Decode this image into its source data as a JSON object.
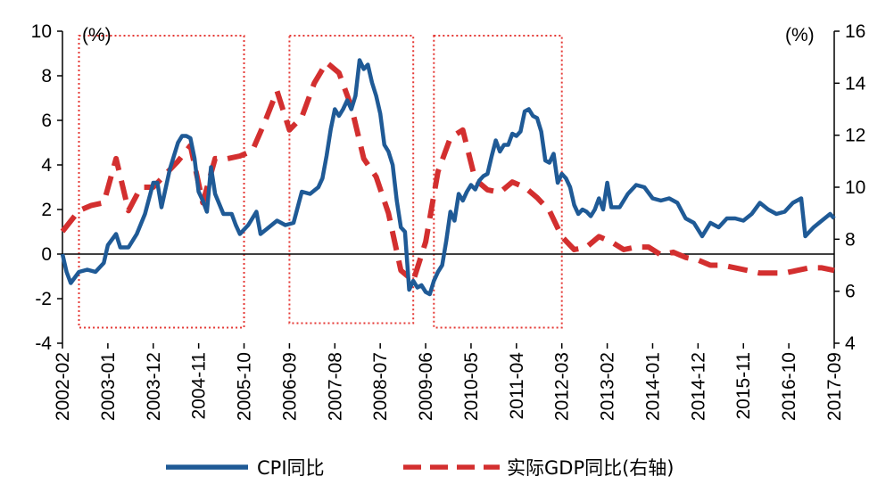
{
  "chart_data": {
    "type": "line",
    "x": [
      "2002-02",
      "2003-01",
      "2003-12",
      "2004-11",
      "2005-10",
      "2006-09",
      "2007-08",
      "2008-07",
      "2009-06",
      "2010-05",
      "2011-04",
      "2012-03",
      "2013-02",
      "2014-01",
      "2014-12",
      "2015-11",
      "2016-10",
      "2017-09"
    ],
    "left_axis": {
      "unit": "(%)",
      "ylim": [
        -4,
        10
      ],
      "ticks": [
        "10",
        "8",
        "6",
        "4",
        "2",
        "0",
        "-2",
        "-4"
      ]
    },
    "right_axis": {
      "unit": "(%)",
      "ylim": [
        4,
        16
      ],
      "ticks": [
        "16",
        "14",
        "12",
        "10",
        "8",
        "6",
        "4"
      ]
    },
    "series": [
      {
        "name": "CPI同比",
        "axis": "left",
        "color": "#1f5a96",
        "style": "solid",
        "points": [
          [
            "2002-02",
            0.0
          ],
          [
            "2002-03",
            -0.8
          ],
          [
            "2002-04",
            -1.3
          ],
          [
            "2002-06",
            -0.8
          ],
          [
            "2002-08",
            -0.7
          ],
          [
            "2002-10",
            -0.8
          ],
          [
            "2002-12",
            -0.4
          ],
          [
            "2003-01",
            0.4
          ],
          [
            "2003-03",
            0.9
          ],
          [
            "2003-04",
            0.3
          ],
          [
            "2003-06",
            0.3
          ],
          [
            "2003-08",
            0.9
          ],
          [
            "2003-10",
            1.8
          ],
          [
            "2003-12",
            3.2
          ],
          [
            "2004-01",
            3.2
          ],
          [
            "2004-02",
            2.1
          ],
          [
            "2004-04",
            3.8
          ],
          [
            "2004-06",
            5.0
          ],
          [
            "2004-07",
            5.3
          ],
          [
            "2004-08",
            5.3
          ],
          [
            "2004-09",
            5.2
          ],
          [
            "2004-10",
            4.3
          ],
          [
            "2004-11",
            2.8
          ],
          [
            "2004-12",
            2.4
          ],
          [
            "2005-01",
            1.9
          ],
          [
            "2005-02",
            3.9
          ],
          [
            "2005-03",
            2.7
          ],
          [
            "2005-05",
            1.8
          ],
          [
            "2005-07",
            1.8
          ],
          [
            "2005-08",
            1.3
          ],
          [
            "2005-09",
            0.9
          ],
          [
            "2005-11",
            1.3
          ],
          [
            "2006-01",
            1.9
          ],
          [
            "2006-02",
            0.9
          ],
          [
            "2006-04",
            1.2
          ],
          [
            "2006-06",
            1.5
          ],
          [
            "2006-08",
            1.3
          ],
          [
            "2006-10",
            1.4
          ],
          [
            "2006-12",
            2.8
          ],
          [
            "2007-02",
            2.7
          ],
          [
            "2007-04",
            3.0
          ],
          [
            "2007-05",
            3.4
          ],
          [
            "2007-06",
            4.4
          ],
          [
            "2007-07",
            5.6
          ],
          [
            "2007-08",
            6.5
          ],
          [
            "2007-09",
            6.2
          ],
          [
            "2007-10",
            6.5
          ],
          [
            "2007-11",
            6.9
          ],
          [
            "2007-12",
            6.5
          ],
          [
            "2008-01",
            7.1
          ],
          [
            "2008-02",
            8.7
          ],
          [
            "2008-03",
            8.3
          ],
          [
            "2008-04",
            8.5
          ],
          [
            "2008-05",
            7.7
          ],
          [
            "2008-06",
            7.1
          ],
          [
            "2008-07",
            6.3
          ],
          [
            "2008-08",
            4.9
          ],
          [
            "2008-09",
            4.6
          ],
          [
            "2008-10",
            4.0
          ],
          [
            "2008-11",
            2.4
          ],
          [
            "2008-12",
            1.2
          ],
          [
            "2009-01",
            1.0
          ],
          [
            "2009-02",
            -1.6
          ],
          [
            "2009-03",
            -1.2
          ],
          [
            "2009-04",
            -1.5
          ],
          [
            "2009-05",
            -1.4
          ],
          [
            "2009-06",
            -1.7
          ],
          [
            "2009-07",
            -1.8
          ],
          [
            "2009-08",
            -1.2
          ],
          [
            "2009-09",
            -0.8
          ],
          [
            "2009-10",
            -0.5
          ],
          [
            "2009-11",
            0.6
          ],
          [
            "2009-12",
            1.9
          ],
          [
            "2010-01",
            1.5
          ],
          [
            "2010-02",
            2.7
          ],
          [
            "2010-03",
            2.4
          ],
          [
            "2010-04",
            2.8
          ],
          [
            "2010-05",
            3.1
          ],
          [
            "2010-06",
            2.9
          ],
          [
            "2010-07",
            3.3
          ],
          [
            "2010-08",
            3.5
          ],
          [
            "2010-09",
            3.6
          ],
          [
            "2010-10",
            4.4
          ],
          [
            "2010-11",
            5.1
          ],
          [
            "2010-12",
            4.6
          ],
          [
            "2011-01",
            4.9
          ],
          [
            "2011-02",
            4.9
          ],
          [
            "2011-03",
            5.4
          ],
          [
            "2011-04",
            5.3
          ],
          [
            "2011-05",
            5.5
          ],
          [
            "2011-06",
            6.4
          ],
          [
            "2011-07",
            6.5
          ],
          [
            "2011-08",
            6.2
          ],
          [
            "2011-09",
            6.1
          ],
          [
            "2011-10",
            5.5
          ],
          [
            "2011-11",
            4.2
          ],
          [
            "2011-12",
            4.1
          ],
          [
            "2012-01",
            4.5
          ],
          [
            "2012-02",
            3.2
          ],
          [
            "2012-03",
            3.6
          ],
          [
            "2012-04",
            3.4
          ],
          [
            "2012-05",
            3.0
          ],
          [
            "2012-06",
            2.2
          ],
          [
            "2012-07",
            1.8
          ],
          [
            "2012-08",
            2.0
          ],
          [
            "2012-09",
            1.9
          ],
          [
            "2012-10",
            1.7
          ],
          [
            "2012-11",
            2.0
          ],
          [
            "2012-12",
            2.5
          ],
          [
            "2013-01",
            2.0
          ],
          [
            "2013-02",
            3.2
          ],
          [
            "2013-03",
            2.1
          ],
          [
            "2013-05",
            2.1
          ],
          [
            "2013-07",
            2.7
          ],
          [
            "2013-09",
            3.1
          ],
          [
            "2013-11",
            3.0
          ],
          [
            "2014-01",
            2.5
          ],
          [
            "2014-03",
            2.4
          ],
          [
            "2014-05",
            2.5
          ],
          [
            "2014-07",
            2.3
          ],
          [
            "2014-09",
            1.6
          ],
          [
            "2014-11",
            1.4
          ],
          [
            "2015-01",
            0.8
          ],
          [
            "2015-03",
            1.4
          ],
          [
            "2015-05",
            1.2
          ],
          [
            "2015-07",
            1.6
          ],
          [
            "2015-09",
            1.6
          ],
          [
            "2015-11",
            1.5
          ],
          [
            "2016-01",
            1.8
          ],
          [
            "2016-03",
            2.3
          ],
          [
            "2016-05",
            2.0
          ],
          [
            "2016-07",
            1.8
          ],
          [
            "2016-09",
            1.9
          ],
          [
            "2016-11",
            2.3
          ],
          [
            "2017-01",
            2.5
          ],
          [
            "2017-02",
            0.8
          ],
          [
            "2017-04",
            1.2
          ],
          [
            "2017-06",
            1.5
          ],
          [
            "2017-08",
            1.8
          ],
          [
            "2017-09",
            1.6
          ]
        ]
      },
      {
        "name": "实际GDP同比(右轴)",
        "axis": "right",
        "color": "#d32f2f",
        "style": "dashed",
        "points": [
          [
            "2002-02",
            8.3
          ],
          [
            "2002-06",
            9.1
          ],
          [
            "2002-09",
            9.3
          ],
          [
            "2002-12",
            9.4
          ],
          [
            "2003-03",
            11.1
          ],
          [
            "2003-06",
            9.1
          ],
          [
            "2003-09",
            10.0
          ],
          [
            "2003-12",
            10.0
          ],
          [
            "2004-03",
            10.5
          ],
          [
            "2004-06",
            11.0
          ],
          [
            "2004-09",
            11.6
          ],
          [
            "2004-12",
            9.4
          ],
          [
            "2005-03",
            11.1
          ],
          [
            "2005-06",
            11.1
          ],
          [
            "2005-09",
            11.2
          ],
          [
            "2005-12",
            11.4
          ],
          [
            "2006-03",
            12.5
          ],
          [
            "2006-06",
            13.7
          ],
          [
            "2006-09",
            12.2
          ],
          [
            "2006-12",
            12.7
          ],
          [
            "2007-03",
            14.0
          ],
          [
            "2007-06",
            14.8
          ],
          [
            "2007-09",
            14.4
          ],
          [
            "2007-12",
            13.1
          ],
          [
            "2008-03",
            11.1
          ],
          [
            "2008-06",
            10.4
          ],
          [
            "2008-09",
            9.0
          ],
          [
            "2008-12",
            6.8
          ],
          [
            "2009-03",
            6.4
          ],
          [
            "2009-06",
            7.9
          ],
          [
            "2009-09",
            10.6
          ],
          [
            "2009-12",
            11.9
          ],
          [
            "2010-03",
            12.2
          ],
          [
            "2010-06",
            10.3
          ],
          [
            "2010-09",
            9.9
          ],
          [
            "2010-12",
            9.8
          ],
          [
            "2011-03",
            10.2
          ],
          [
            "2011-06",
            10.0
          ],
          [
            "2011-09",
            9.6
          ],
          [
            "2011-12",
            9.1
          ],
          [
            "2012-03",
            8.1
          ],
          [
            "2012-06",
            7.6
          ],
          [
            "2012-09",
            7.7
          ],
          [
            "2012-12",
            8.1
          ],
          [
            "2013-03",
            7.9
          ],
          [
            "2013-06",
            7.6
          ],
          [
            "2013-09",
            7.7
          ],
          [
            "2013-12",
            7.7
          ],
          [
            "2014-03",
            7.4
          ],
          [
            "2014-06",
            7.5
          ],
          [
            "2014-09",
            7.3
          ],
          [
            "2014-12",
            7.2
          ],
          [
            "2015-03",
            7.0
          ],
          [
            "2015-06",
            7.0
          ],
          [
            "2015-09",
            6.9
          ],
          [
            "2015-12",
            6.8
          ],
          [
            "2016-03",
            6.7
          ],
          [
            "2016-06",
            6.7
          ],
          [
            "2016-09",
            6.7
          ],
          [
            "2016-12",
            6.8
          ],
          [
            "2017-03",
            6.9
          ],
          [
            "2017-06",
            6.9
          ],
          [
            "2017-09",
            6.8
          ]
        ]
      }
    ],
    "shaded_boxes": [
      {
        "start": "2002-06",
        "end": "2005-10",
        "ymin": -3.3,
        "ymax": 9.8
      },
      {
        "start": "2006-09",
        "end": "2009-03",
        "ymin": -3.1,
        "ymax": 9.8
      },
      {
        "start": "2009-08",
        "end": "2012-03",
        "ymin": -3.3,
        "ymax": 9.8
      }
    ],
    "legend": {
      "placement": "bottom"
    },
    "grid": false
  }
}
